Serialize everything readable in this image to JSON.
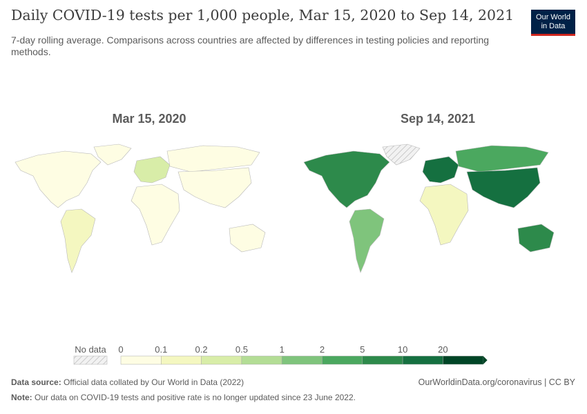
{
  "header": {
    "title": "Daily COVID-19 tests per 1,000 people, Mar 15, 2020 to Sep 14, 2021",
    "subtitle": "7-day rolling average. Comparisons across countries are affected by differences in testing policies and reporting methods.",
    "logo_line1": "Our World",
    "logo_line2": "in Data"
  },
  "panels": [
    {
      "date_label": "Mar 15, 2020"
    },
    {
      "date_label": "Sep 14, 2021"
    }
  ],
  "legend": {
    "no_data_label": "No data",
    "thresholds": [
      "0",
      "0.1",
      "0.2",
      "0.5",
      "1",
      "2",
      "5",
      "10",
      "20"
    ],
    "colors": [
      "#fefde3",
      "#f4f7c0",
      "#d8eda8",
      "#b3dd95",
      "#7fc47c",
      "#4ba85f",
      "#2d8a4b",
      "#157040",
      "#004526"
    ],
    "no_data_color": "#e0e0e0"
  },
  "regions_2020": [
    {
      "name": "North America",
      "color": "#fefde3"
    },
    {
      "name": "Greenland",
      "color": "#fefde3"
    },
    {
      "name": "South America",
      "color": "#f4f7c0"
    },
    {
      "name": "Europe",
      "color": "#d8eda8"
    },
    {
      "name": "Russia",
      "color": "#fefde3"
    },
    {
      "name": "Africa",
      "color": "#fefde3"
    },
    {
      "name": "Asia",
      "color": "#fefde3"
    },
    {
      "name": "Australia",
      "color": "#fefde3"
    }
  ],
  "regions_2021": [
    {
      "name": "North America",
      "color": "#2d8a4b"
    },
    {
      "name": "Greenland",
      "color": "#e0e0e0"
    },
    {
      "name": "South America",
      "color": "#7fc47c"
    },
    {
      "name": "Europe",
      "color": "#157040"
    },
    {
      "name": "Russia",
      "color": "#4ba85f"
    },
    {
      "name": "Africa",
      "color": "#f4f7c0"
    },
    {
      "name": "Asia",
      "color": "#157040"
    },
    {
      "name": "Australia",
      "color": "#2d8a4b"
    }
  ],
  "footer": {
    "source_label": "Data source:",
    "source_text": "Official data collated by Our World in Data (2022)",
    "note_label": "Note:",
    "note_text": "Our data on COVID-19 tests and positive rate is no longer updated since 23 June 2022.",
    "url_text": "OurWorldinData.org/coronavirus | CC BY"
  }
}
